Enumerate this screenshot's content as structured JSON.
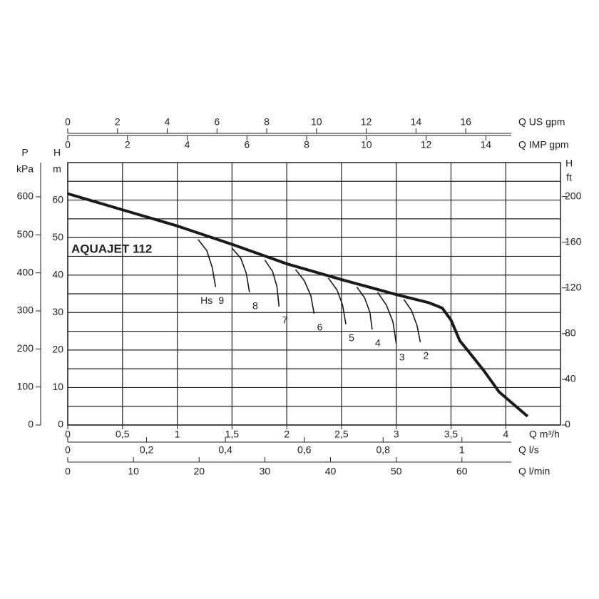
{
  "chart_data": {
    "type": "line",
    "title": "AQUAJET 112",
    "x_label": "Q m³/h",
    "y_label": "H",
    "y_unit": "m",
    "xlim": [
      0,
      4.5
    ],
    "ylim": [
      0,
      70
    ],
    "xticks": [
      0,
      {
        "value": 0.5,
        "label": "0,5"
      },
      1,
      {
        "value": 1.5,
        "label": "1,5"
      },
      2,
      {
        "value": 2.5,
        "label": "2,5"
      },
      3,
      {
        "value": 3.5,
        "label": "3,5"
      },
      4
    ],
    "yticks": [
      0,
      10,
      20,
      30,
      40,
      50,
      60
    ],
    "ygrid": [
      5,
      15,
      25,
      35,
      45,
      55,
      65
    ],
    "grid": true,
    "color": "#1a1a1a",
    "series": [
      {
        "x": [
          0,
          0.5,
          1,
          1.5,
          2,
          2.5,
          3,
          3.3,
          3.42,
          3.5,
          3.58,
          3.65,
          3.8,
          3.94,
          4.1,
          4.2
        ],
        "values": [
          61.7,
          57.4,
          53.1,
          48.2,
          43,
          38.8,
          34.8,
          32.6,
          31.2,
          28,
          22.5,
          20,
          14.5,
          8.8,
          4.8,
          2.3
        ]
      },
      {
        "name": "9",
        "x": [
          1.19,
          1.27,
          1.32,
          1.35
        ],
        "values": [
          49.5,
          46.5,
          42,
          36.8
        ]
      },
      {
        "name": "8",
        "x": [
          1.5,
          1.58,
          1.63,
          1.66
        ],
        "values": [
          47.2,
          44.5,
          40.5,
          35.4
        ]
      },
      {
        "name": "7",
        "x": [
          1.8,
          1.87,
          1.91,
          1.93
        ],
        "values": [
          44,
          41,
          37,
          31.6
        ]
      },
      {
        "name": "6",
        "x": [
          2.08,
          2.16,
          2.22,
          2.25
        ],
        "values": [
          41.5,
          38.5,
          34.5,
          29.7
        ]
      },
      {
        "name": "5",
        "x": [
          2.38,
          2.46,
          2.51,
          2.54
        ],
        "values": [
          39.2,
          36,
          32,
          26.9
        ]
      },
      {
        "name": "4",
        "x": [
          2.64,
          2.71,
          2.76,
          2.78
        ],
        "values": [
          36.8,
          34,
          30,
          25.5
        ]
      },
      {
        "name": "3",
        "x": [
          2.83,
          2.91,
          2.97,
          3.0
        ],
        "values": [
          35.4,
          32,
          27.5,
          21.7
        ]
      },
      {
        "name": "2",
        "x": [
          3.07,
          3.14,
          3.19,
          3.22
        ],
        "values": [
          33.5,
          30.5,
          26.5,
          22.1
        ]
      }
    ],
    "annotation": "Hs",
    "secondary_axes": [
      {
        "side": "top",
        "label": "Q US gpm",
        "lim": [
          0,
          19.81
        ],
        "ticks": [
          0,
          2,
          4,
          6,
          8,
          10,
          12,
          14,
          16
        ]
      },
      {
        "side": "top",
        "label": "Q IMP gpm",
        "lim": [
          0,
          16.5
        ],
        "ticks": [
          0,
          2,
          4,
          6,
          8,
          10,
          12,
          14
        ]
      },
      {
        "side": "bottom",
        "label": "Q l/s",
        "lim": [
          0,
          1.25
        ],
        "ticks": [
          0,
          {
            "value": 0.2,
            "label": "0,2"
          },
          {
            "value": 0.4,
            "label": "0,4"
          },
          {
            "value": 0.6,
            "label": "0,6"
          },
          {
            "value": 0.8,
            "label": "0,8"
          },
          1
        ]
      },
      {
        "side": "bottom",
        "label": "Q l/min",
        "lim": [
          0,
          75
        ],
        "ticks": [
          0,
          10,
          20,
          30,
          40,
          50,
          60
        ]
      },
      {
        "side": "left",
        "label": "P",
        "unit": "kPa",
        "lim": [
          0,
          690
        ],
        "ticks": [
          0,
          100,
          200,
          300,
          400,
          500,
          600
        ]
      },
      {
        "side": "right",
        "label": "H",
        "unit": "ft",
        "lim": [
          0,
          229.7
        ],
        "ticks": [
          0,
          40,
          80,
          120,
          160,
          200
        ]
      }
    ]
  }
}
